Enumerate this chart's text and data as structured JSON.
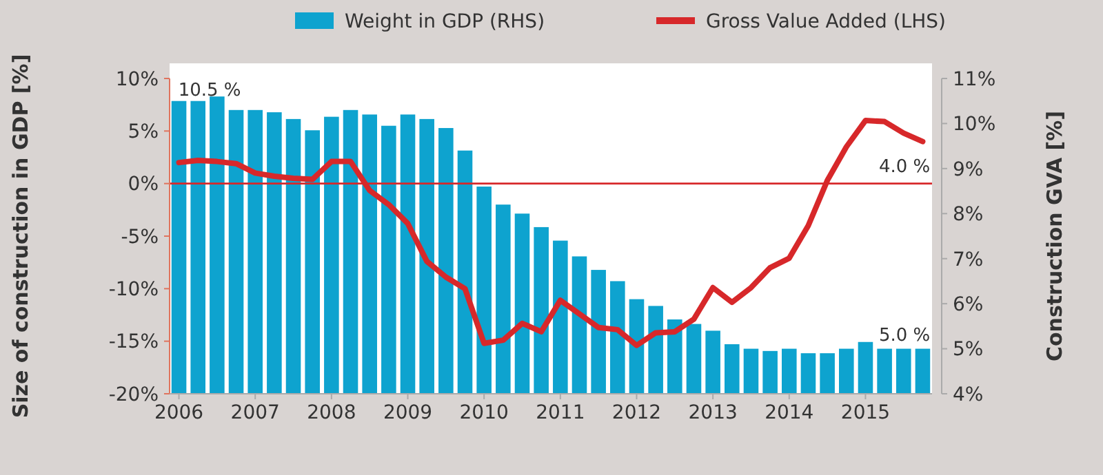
{
  "chart_data": {
    "type": "bar",
    "categories": [
      "2006",
      null,
      null,
      null,
      "2007",
      null,
      null,
      null,
      "2008",
      null,
      null,
      null,
      "2009",
      null,
      null,
      null,
      "2010",
      null,
      null,
      null,
      "2011",
      null,
      null,
      null,
      "2012",
      null,
      null,
      null,
      "2013",
      null,
      null,
      null,
      "2014",
      null,
      null,
      null,
      "2015",
      null,
      null,
      null
    ],
    "series": [
      {
        "name": "Weight in GDP (RHS)",
        "axis": "y2",
        "color": "#0ea3cf",
        "values": [
          10.5,
          10.5,
          10.6,
          10.3,
          10.3,
          10.25,
          10.1,
          9.85,
          10.15,
          10.3,
          10.2,
          9.95,
          10.2,
          10.1,
          9.9,
          9.4,
          8.6,
          8.2,
          8.0,
          7.7,
          7.4,
          7.05,
          6.75,
          6.5,
          6.1,
          5.95,
          5.65,
          5.55,
          5.4,
          5.1,
          5.0,
          4.95,
          5.0,
          4.9,
          4.9,
          5.0,
          5.15,
          5.0,
          5.0,
          5.0
        ]
      },
      {
        "name": "Gross Value Added (LHS)",
        "type": "line",
        "color": "#d7282a",
        "values": [
          2.0,
          2.2,
          2.1,
          1.9,
          1.0,
          0.7,
          0.5,
          0.4,
          2.1,
          2.1,
          -0.65,
          -2.0,
          -3.8,
          -7.4,
          -8.9,
          -10.0,
          -15.2,
          -14.9,
          -13.3,
          -14.1,
          -11.1,
          -12.4,
          -13.7,
          -13.9,
          -15.4,
          -14.2,
          -14.1,
          -12.9,
          -9.9,
          -11.3,
          -9.9,
          -8.0,
          -7.1,
          -4.0,
          0.3,
          3.5,
          6.0,
          5.9,
          4.8,
          4.0
        ]
      }
    ],
    "ylabel": "Size of construction in GDP [%]",
    "y2label": "Construction GVA [%]",
    "ylim": [
      -20,
      10
    ],
    "yticks": [
      {
        "value": -20,
        "label": "-20%"
      },
      {
        "value": -15,
        "label": "-15%"
      },
      {
        "value": -10,
        "label": "-10%"
      },
      {
        "value": -5,
        "label": "-5%"
      },
      {
        "value": 0,
        "label": "0%"
      },
      {
        "value": 5,
        "label": "5%"
      },
      {
        "value": 10,
        "label": "10%"
      }
    ],
    "y2lim": [
      4,
      11
    ],
    "y2ticks": [
      {
        "value": 4,
        "label": "4%"
      },
      {
        "value": 5,
        "label": "5%"
      },
      {
        "value": 6,
        "label": "6%"
      },
      {
        "value": 7,
        "label": "7%"
      },
      {
        "value": 8,
        "label": "8%"
      },
      {
        "value": 9,
        "label": "9%"
      },
      {
        "value": 10,
        "label": "10%"
      },
      {
        "value": 11,
        "label": "11%"
      }
    ],
    "ref_lines": [
      {
        "axis": "y",
        "value": 0,
        "color": "#d7282a"
      }
    ],
    "annotations": [
      "10.5 %",
      "4.0 %",
      "5.0 %"
    ],
    "legend": "top",
    "grid": false,
    "line_style": "solid",
    "marker": "none"
  }
}
